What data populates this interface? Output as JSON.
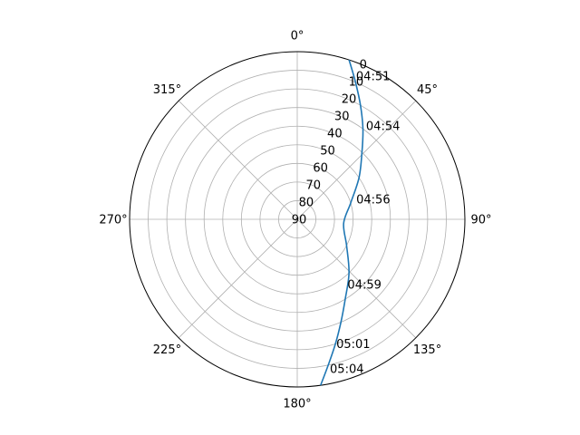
{
  "chart_data": {
    "type": "line",
    "projection": "polar",
    "theta_zero_location": "N",
    "theta_direction": "clockwise",
    "radial_axis": "elevation",
    "radial_inverted": true,
    "rlim": [
      90,
      0
    ],
    "grid": true,
    "angle_ticks": [
      {
        "deg": 0,
        "label": "0°"
      },
      {
        "deg": 45,
        "label": "45°"
      },
      {
        "deg": 90,
        "label": "90°"
      },
      {
        "deg": 135,
        "label": "135°"
      },
      {
        "deg": 180,
        "label": "180°"
      },
      {
        "deg": 225,
        "label": "225°"
      },
      {
        "deg": 270,
        "label": "270°"
      },
      {
        "deg": 315,
        "label": "315°"
      }
    ],
    "radial_ticks": [
      {
        "value": 0,
        "label": "0"
      },
      {
        "value": 10,
        "label": "10"
      },
      {
        "value": 20,
        "label": "20"
      },
      {
        "value": 30,
        "label": "30"
      },
      {
        "value": 40,
        "label": "40"
      },
      {
        "value": 50,
        "label": "50"
      },
      {
        "value": 60,
        "label": "60"
      },
      {
        "value": 70,
        "label": "70"
      },
      {
        "value": 80,
        "label": "80"
      },
      {
        "value": 90,
        "label": "90"
      }
    ],
    "series": [
      {
        "color": "#1f77b4",
        "points": [
          {
            "azimuth": 18,
            "elevation": 0
          },
          {
            "azimuth": 23,
            "elevation": 10
          },
          {
            "azimuth": 29,
            "elevation": 20
          },
          {
            "azimuth": 36,
            "elevation": 30
          },
          {
            "azimuth": 44,
            "elevation": 40
          },
          {
            "azimuth": 56,
            "elevation": 50
          },
          {
            "azimuth": 73,
            "elevation": 60
          },
          {
            "azimuth": 95,
            "elevation": 65
          },
          {
            "azimuth": 118,
            "elevation": 60
          },
          {
            "azimuth": 136,
            "elevation": 50
          },
          {
            "azimuth": 149,
            "elevation": 40
          },
          {
            "azimuth": 157,
            "elevation": 30
          },
          {
            "azimuth": 163,
            "elevation": 20
          },
          {
            "azimuth": 168,
            "elevation": 10
          },
          {
            "azimuth": 172,
            "elevation": 0
          }
        ]
      }
    ],
    "annotations": [
      {
        "text": "04:51",
        "azimuth": 22,
        "elevation": 7
      },
      {
        "text": "04:54",
        "azimuth": 36,
        "elevation": 28
      },
      {
        "text": "04:56",
        "azimuth": 71,
        "elevation": 57
      },
      {
        "text": "04:59",
        "azimuth": 143,
        "elevation": 46
      },
      {
        "text": "05:01",
        "azimuth": 163,
        "elevation": 20
      },
      {
        "text": "05:04",
        "azimuth": 168,
        "elevation": 8
      }
    ]
  }
}
